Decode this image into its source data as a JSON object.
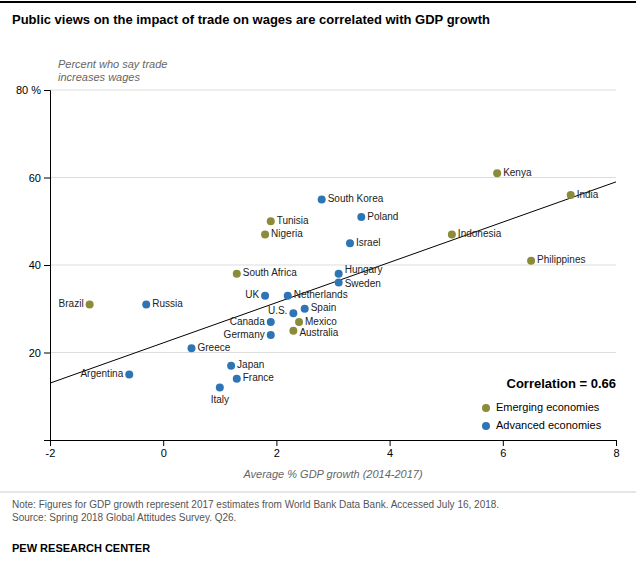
{
  "chart_data": {
    "type": "scatter",
    "title": "Public views on the impact of trade on wages are correlated with GDP growth",
    "xlabel": "Average % GDP growth (2014-2017)",
    "ylabel": "Percent who say trade\nincreases wages",
    "note": "Note: Figures for GDP growth represent 2017 estimates from World Bank Data Bank. Accessed July 16, 2018.\nSource: Spring 2018 Global Attitudes Survey. Q26.",
    "source": "PEW RESEARCH CENTER",
    "annotations": [
      "Correlation = 0.66"
    ],
    "series": [
      {
        "name": "Emerging economies",
        "color": "#8B8B3A",
        "labels": [
          "Brazil",
          "Tunisia",
          "Nigeria",
          "South Africa",
          "Mexico",
          "Australia",
          "Indonesia",
          "Kenya",
          "India",
          "Philippines"
        ],
        "x": [
          -1.3,
          1.9,
          1.8,
          1.3,
          2.4,
          2.3,
          5.1,
          5.9,
          7.2,
          6.5
        ],
        "values": [
          31,
          50,
          47,
          38,
          27,
          25,
          47,
          61,
          56,
          41
        ]
      },
      {
        "name": "Advanced economies",
        "color": "#2E75B6",
        "labels": [
          "Russia",
          "Argentina",
          "Greece",
          "Italy",
          "France",
          "Japan",
          "Germany",
          "Canada",
          "UK",
          "U.S.",
          "Netherlands",
          "Spain",
          "Israel",
          "Hungary",
          "Sweden",
          "South Korea",
          "Poland"
        ],
        "x": [
          -0.3,
          -0.6,
          0.5,
          1.0,
          1.3,
          1.2,
          1.9,
          1.9,
          1.8,
          2.3,
          2.2,
          2.5,
          3.3,
          3.1,
          3.1,
          2.8,
          3.5
        ],
        "values": [
          31,
          15,
          21,
          12,
          14,
          17,
          24,
          27,
          33,
          29,
          33,
          30,
          45,
          38,
          36,
          55,
          51
        ]
      }
    ],
    "trendline": {
      "color": "black",
      "x": [
        -2,
        8
      ],
      "values": [
        13,
        59
      ]
    },
    "xlim": [
      -2,
      8
    ],
    "ylim": [
      0,
      80
    ],
    "xticks": [
      -2,
      0,
      2,
      4,
      6,
      8
    ],
    "yticks": [
      20,
      40,
      60,
      {
        "value": 80,
        "label": "80 %"
      }
    ],
    "grid": true,
    "legend": "lower right"
  }
}
